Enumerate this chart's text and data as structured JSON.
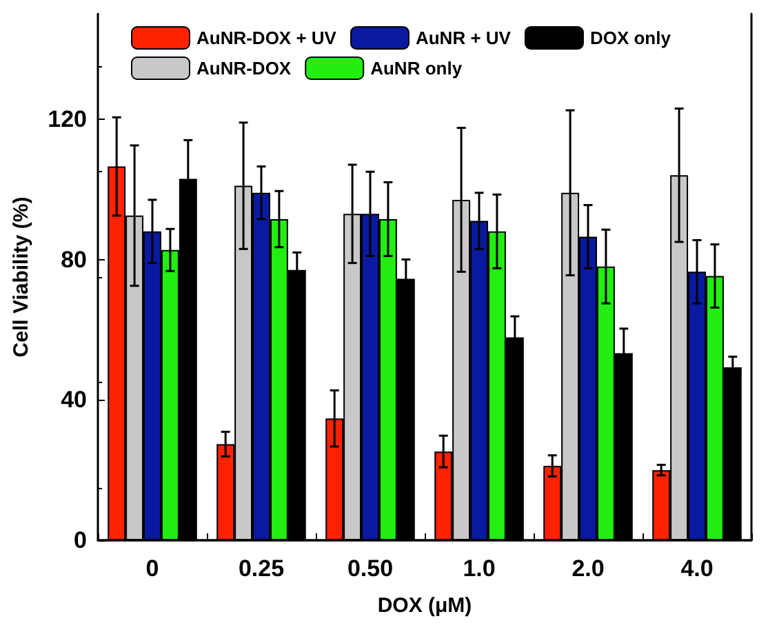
{
  "chart_data": {
    "type": "bar",
    "xlabel": "DOX (μM)",
    "ylabel": "Cell Viability (%)",
    "categories": [
      "0",
      "0.25",
      "0.50",
      "1.0",
      "2.0",
      "4.0"
    ],
    "ylim": [
      0,
      150
    ],
    "yticks": [
      0,
      40,
      80,
      120
    ],
    "grid": false,
    "legend": "top",
    "series": [
      {
        "name": "AuNR-DOX + UV",
        "color": "#ff2200",
        "values": [
          106.5,
          27.4,
          34.7,
          25.3,
          21.2,
          20
        ],
        "errors": [
          14,
          3.5,
          8,
          4.5,
          3,
          1.5
        ]
      },
      {
        "name": "AuNR-DOX",
        "color": "#c8c8c8",
        "values": [
          92.5,
          101,
          93,
          97,
          99,
          104
        ],
        "errors": [
          20,
          18,
          14,
          20.5,
          23.5,
          19
        ]
      },
      {
        "name": "AuNR + UV",
        "color": "#0a1aa0",
        "values": [
          88,
          99,
          93,
          91,
          86.5,
          76.5
        ],
        "errors": [
          9,
          7.5,
          12,
          8,
          9,
          9
        ]
      },
      {
        "name": "AuNR only",
        "color": "#22ee11",
        "values": [
          82.7,
          91.5,
          91.5,
          88,
          78,
          75.3
        ],
        "errors": [
          6,
          8,
          10.5,
          10.5,
          10.5,
          9
        ]
      },
      {
        "name": "DOX only",
        "color": "#000000",
        "values": [
          103,
          77,
          74.5,
          57.8,
          53.3,
          49.3
        ],
        "errors": [
          11,
          5,
          5.5,
          6,
          7,
          3
        ]
      }
    ]
  }
}
